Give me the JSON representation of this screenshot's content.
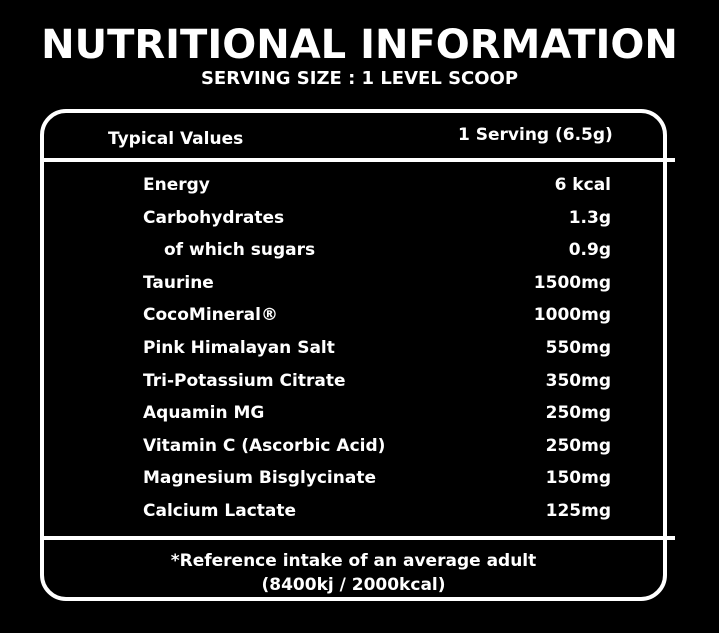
{
  "header": {
    "title": "NUTRITIONAL INFORMATION",
    "subtitle": "SERVING SIZE : 1 LEVEL SCOOP"
  },
  "table": {
    "columns": [
      "Typical Values",
      "1 Serving (6.5g)"
    ],
    "rows": [
      [
        "Energy",
        "6 kcal"
      ],
      [
        "Carbohydrates",
        "1.3g"
      ],
      [
        "of which sugars",
        "0.9g"
      ],
      [
        "Taurine",
        "1500mg"
      ],
      [
        "CocoMineral®",
        "1000mg"
      ],
      [
        "Pink Himalayan Salt",
        "550mg"
      ],
      [
        "Tri-Potassium Citrate",
        "350mg"
      ],
      [
        "Aquamin MG",
        "250mg"
      ],
      [
        "Vitamin C (Ascorbic Acid)",
        "250mg"
      ],
      [
        "Magnesium Bisglycinate",
        "150mg"
      ],
      [
        "Calcium Lactate",
        "125mg"
      ]
    ],
    "footnote": [
      "*Reference intake of an average adult",
      "(8400kj / 2000kcal)"
    ]
  }
}
